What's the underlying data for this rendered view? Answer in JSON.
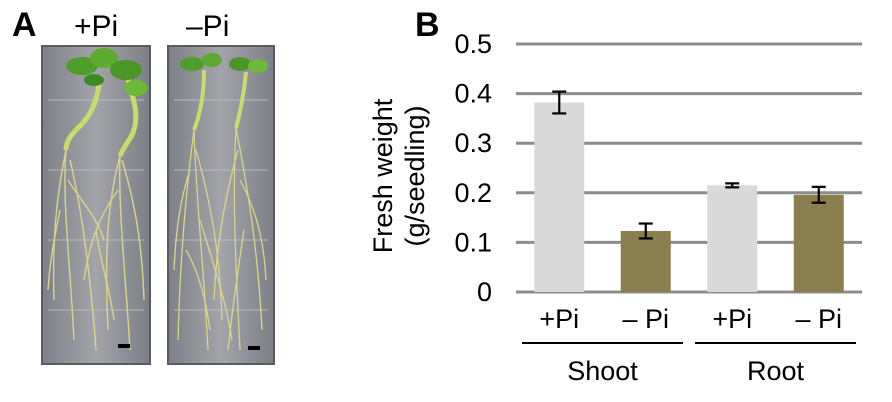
{
  "panels": {
    "a_label": "A",
    "b_label": "B"
  },
  "photo": {
    "left_label": "+Pi",
    "right_label": "–Pi"
  },
  "colors": {
    "plus_pi_bar": "#d9d9d9",
    "minus_pi_bar": "#8b7f4f",
    "grid": "#8c8c8c",
    "plate_bg": "#8e9096",
    "leaf_green": "#4f9d2a",
    "root_yellow": "#d9d58a"
  },
  "chart_data": {
    "type": "bar",
    "ylabel_line1": "Fresh weight",
    "ylabel_line2": "(g/seedling)",
    "ylim": [
      0,
      0.5
    ],
    "yticks": [
      "0",
      "0.1",
      "0.2",
      "0.3",
      "0.4",
      "0.5"
    ],
    "ytick_values": [
      0,
      0.1,
      0.2,
      0.3,
      0.4,
      0.5
    ],
    "grid": true,
    "categories": [
      "+Pi",
      "– Pi",
      "+Pi",
      "– Pi"
    ],
    "values": [
      0.382,
      0.123,
      0.215,
      0.196
    ],
    "errors": [
      0.022,
      0.015,
      0.004,
      0.016
    ],
    "bar_color_keys": [
      "plus_pi_bar",
      "minus_pi_bar",
      "plus_pi_bar",
      "minus_pi_bar"
    ],
    "groups": [
      {
        "name": "Shoot",
        "bar_indices": [
          0,
          1
        ]
      },
      {
        "name": "Root",
        "bar_indices": [
          2,
          3
        ]
      }
    ]
  }
}
